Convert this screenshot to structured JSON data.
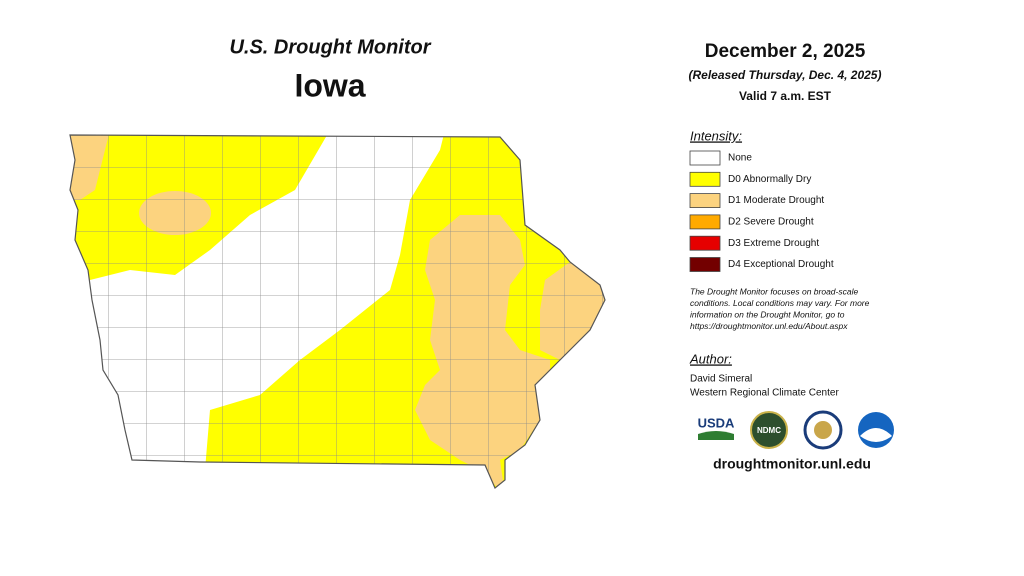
{
  "header": {
    "title": "U.S. Drought Monitor",
    "region": "Iowa"
  },
  "date": {
    "map_date": "December 2, 2025",
    "released": "(Released Thursday, Dec. 4, 2025)",
    "valid": "Valid 7 a.m. EST"
  },
  "legend": {
    "title": "Intensity:",
    "items": [
      {
        "label": "None",
        "color": "#ffffff"
      },
      {
        "label": "D0 Abnormally Dry",
        "color": "#ffff00"
      },
      {
        "label": "D1 Moderate Drought",
        "color": "#fcd37f"
      },
      {
        "label": "D2 Severe Drought",
        "color": "#ffaa00"
      },
      {
        "label": "D3 Extreme Drought",
        "color": "#e60000"
      },
      {
        "label": "D4 Exceptional Drought",
        "color": "#730000"
      }
    ]
  },
  "note": [
    "The Drought Monitor focuses on broad-scale",
    "conditions. Local conditions may vary. For more",
    "information on the Drought Monitor, go to",
    "https://droughtmonitor.unl.edu/About.aspx"
  ],
  "author": {
    "title": "Author:",
    "name": "David Simeral",
    "organization": "Western Regional Climate Center"
  },
  "logos": [
    "USDA",
    "NDMC"
  ],
  "website": "droughtmonitor.unl.edu"
}
